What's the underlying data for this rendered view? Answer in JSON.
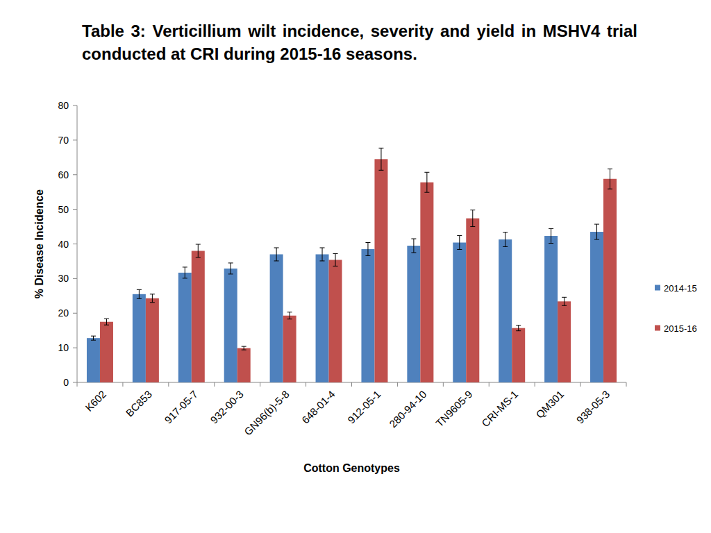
{
  "chart_data": {
    "type": "bar",
    "title": "Table 3: Verticillium wilt incidence, severity and yield in MSHV4 trial conducted at CRI during 2015-16 seasons.",
    "x_label": "Cotton Genotypes",
    "y_label": "% Disease Incidence",
    "categories": [
      "K602",
      "BC853",
      "917-05-7",
      "932-00-3",
      "GN96(b)-5-8",
      "648-01-4",
      "912-05-1",
      "280-94-10",
      "TN9605-9",
      "CRI-MS-1",
      "QM301",
      "938-05-3"
    ],
    "series": [
      {
        "name": "2014-15",
        "color": "#4f81bd",
        "values": [
          12.8,
          25.5,
          31.7,
          32.9,
          37.0,
          37.0,
          38.5,
          39.5,
          40.4,
          41.3,
          42.3,
          43.5
        ],
        "errors": [
          0.6,
          1.3,
          1.6,
          1.6,
          1.9,
          1.9,
          1.9,
          2.0,
          2.0,
          2.1,
          2.1,
          2.2
        ]
      },
      {
        "name": "2015-16",
        "color": "#c0504d",
        "values": [
          17.5,
          24.3,
          38.0,
          9.9,
          19.3,
          35.4,
          64.5,
          57.8,
          47.4,
          15.7,
          23.4,
          58.8
        ],
        "errors": [
          0.9,
          1.2,
          1.9,
          0.5,
          1.0,
          1.8,
          3.2,
          2.9,
          2.4,
          0.8,
          1.2,
          2.9
        ]
      }
    ],
    "ylim": [
      0,
      80
    ],
    "yticks": [
      0,
      10,
      20,
      30,
      40,
      50,
      60,
      70,
      80
    ],
    "grid": false,
    "legend": "right"
  }
}
